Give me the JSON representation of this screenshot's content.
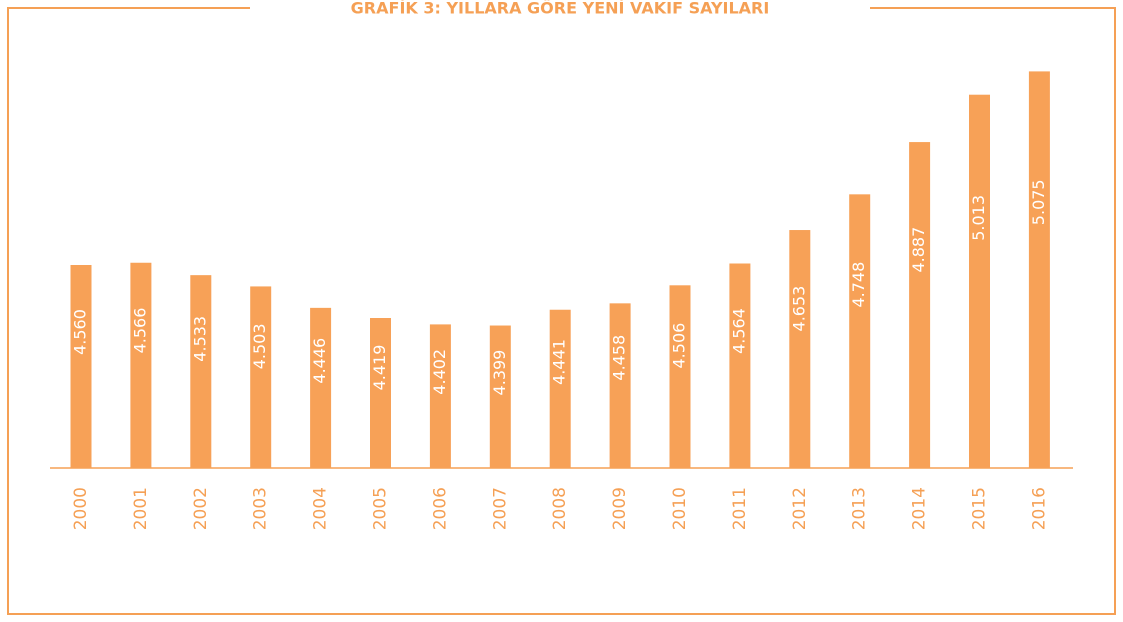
{
  "chart_data": {
    "type": "bar",
    "title": "GRAFİK 3: YILLARA GÖRE YENİ VAKIF SAYILARI",
    "categories": [
      "2000",
      "2001",
      "2002",
      "2003",
      "2004",
      "2005",
      "2006",
      "2007",
      "2008",
      "2009",
      "2010",
      "2011",
      "2012",
      "2013",
      "2014",
      "2015",
      "2016"
    ],
    "values": [
      4560,
      4566,
      4533,
      4503,
      4446,
      4419,
      4402,
      4399,
      4441,
      4458,
      4506,
      4564,
      4653,
      4748,
      4887,
      5013,
      5075
    ],
    "value_labels": [
      "4.560",
      "4.566",
      "4.533",
      "4.503",
      "4.446",
      "4.419",
      "4.402",
      "4.399",
      "4.441",
      "4.458",
      "4.506",
      "4.564",
      "4.653",
      "4.748",
      "4.887",
      "5.013",
      "5.075"
    ],
    "color": "#f7a157",
    "ylim": [
      4020,
      5100
    ]
  }
}
